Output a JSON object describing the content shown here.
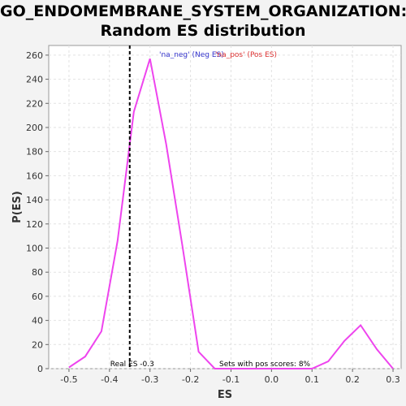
{
  "chart_data": {
    "type": "line",
    "title_line1": "GO_ENDOMEMBRANE_SYSTEM_ORGANIZATION:",
    "title_line2": "Random ES distribution",
    "xlabel": "ES",
    "ylabel": "P(ES)",
    "xlim": [
      -0.55,
      0.32
    ],
    "ylim": [
      0,
      268
    ],
    "xticks": [
      "-0.5",
      "-0.4",
      "-0.3",
      "-0.2",
      "-0.1",
      "0.0",
      "0.1",
      "0.2",
      "0.3"
    ],
    "yticks": [
      "0",
      "20",
      "40",
      "60",
      "80",
      "100",
      "120",
      "140",
      "160",
      "180",
      "200",
      "220",
      "240",
      "260"
    ],
    "grid": true,
    "series": [
      {
        "color": "#ee44ee",
        "x": [
          -0.5,
          -0.46,
          -0.42,
          -0.38,
          -0.34,
          -0.3,
          -0.26,
          -0.22,
          -0.18,
          -0.14,
          -0.1,
          -0.06,
          -0.02,
          0.02,
          0.06,
          0.1,
          0.14,
          0.18,
          0.22,
          0.26,
          0.3
        ],
        "y": [
          1,
          10,
          31,
          106,
          213,
          257,
          186,
          102,
          14,
          0,
          0,
          0,
          0,
          0,
          0,
          0,
          6,
          23,
          36,
          16,
          0
        ]
      }
    ],
    "real_es": -0.35,
    "legend": {
      "neg": "'na_neg' (Neg ES)",
      "neg_color": "#3333cc",
      "pos": "'na_pos' (Pos ES)",
      "pos_color": "#dd3333",
      "placement": "top"
    },
    "annotations": {
      "real_es": "Real ES -0.3",
      "pos_scores": "Sets with pos scores: 8%"
    }
  }
}
